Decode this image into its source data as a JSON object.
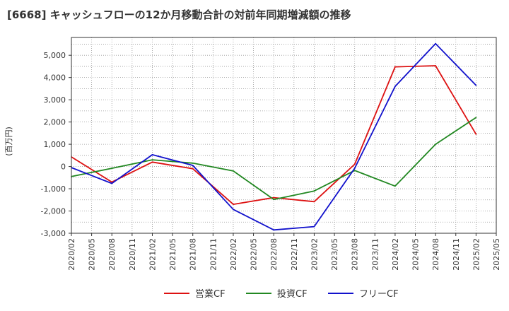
{
  "chart_data": {
    "type": "line",
    "title": "[6668]  キャッシュフローの12か月移動合計の対前年同期増減額の推移",
    "ylabel": "(百万円)",
    "xlabel": "",
    "ylim": [
      -3000,
      5800
    ],
    "yticks": [
      5000,
      4000,
      3000,
      2000,
      1000,
      0,
      -1000,
      -2000,
      -3000
    ],
    "ytick_labels": [
      "5,000",
      "4,000",
      "3,000",
      "2,000",
      "1,000",
      "0",
      "-1,000",
      "-2,000",
      "-3,000"
    ],
    "categories": [
      "2020/02",
      "2020/05",
      "2020/08",
      "2020/11",
      "2021/02",
      "2021/05",
      "2021/08",
      "2021/11",
      "2022/02",
      "2022/05",
      "2022/08",
      "2022/11",
      "2023/02",
      "2023/05",
      "2023/08",
      "2023/11",
      "2024/02",
      "2024/05",
      "2024/08",
      "2024/11",
      "2025/02",
      "2025/05"
    ],
    "grid": true,
    "legend_position": "bottom",
    "series": [
      {
        "name": "営業CF",
        "color": "#dd1111",
        "values": [
          430,
          null,
          -700,
          null,
          200,
          null,
          -100,
          null,
          -1700,
          null,
          -1400,
          null,
          -1580,
          null,
          100,
          null,
          4480,
          null,
          4530,
          null,
          1450,
          null
        ]
      },
      {
        "name": "投資CF",
        "color": "#228822",
        "values": [
          -450,
          null,
          -80,
          null,
          300,
          null,
          150,
          null,
          -200,
          null,
          -1480,
          null,
          -1100,
          null,
          -180,
          null,
          -880,
          null,
          1000,
          null,
          2200,
          null
        ]
      },
      {
        "name": "フリーCF",
        "color": "#1111cc",
        "values": [
          -50,
          null,
          -760,
          null,
          530,
          null,
          50,
          null,
          -1930,
          null,
          -2850,
          null,
          -2700,
          null,
          -80,
          null,
          3600,
          null,
          5520,
          null,
          3650,
          null
        ]
      }
    ]
  }
}
